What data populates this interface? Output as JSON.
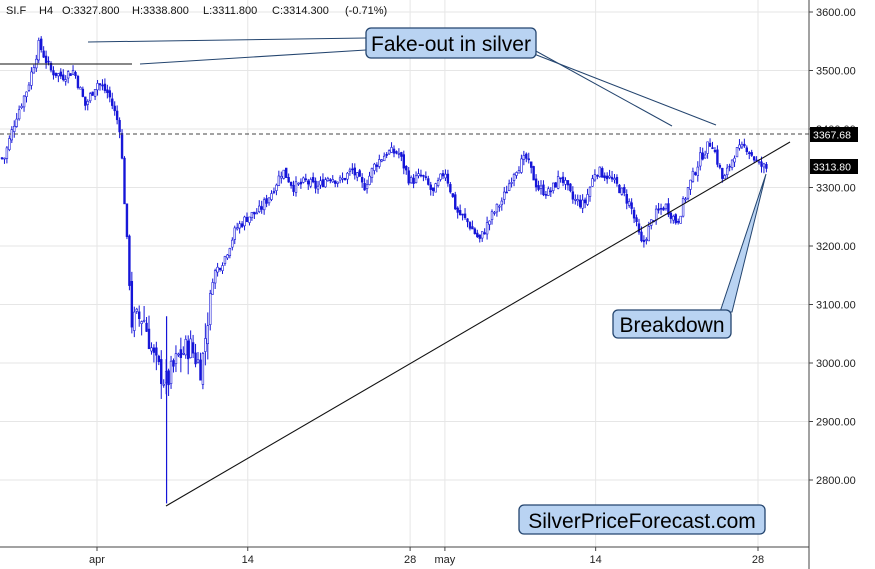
{
  "header": {
    "symbol": "SI.F",
    "timeframe": "H4",
    "open": "O:3327.800",
    "high": "H:3338.800",
    "low": "L:3311.800",
    "close": "C:3314.300",
    "change": "(-0.71%)"
  },
  "annotations": {
    "fakeout": "Fake-out in silver",
    "breakdown": "Breakdown",
    "watermark": "SilverPriceForecast.com"
  },
  "colors": {
    "candle": "#1515d8",
    "callout_fill": "#b9d3f2",
    "callout_border": "#24456f",
    "grid": "#e6e6e6",
    "price_tag": "#000000"
  },
  "chart_data": {
    "type": "candlestick",
    "series": [
      {
        "name": "SI.F H4"
      }
    ],
    "y_axis": {
      "side": "right",
      "ylim": [
        2720,
        3640
      ],
      "ticks": [
        2800,
        2900,
        3000,
        3100,
        3200,
        3300,
        3400,
        3500,
        3600
      ],
      "tick_labels": [
        "2800.00",
        "2900.00",
        "3000.00",
        "3100.00",
        "3200.00",
        "3300.00",
        "3400.00",
        "3500.00",
        "3600.00"
      ]
    },
    "x_axis": {
      "range": [
        "2025-03-24",
        "2025-06-02"
      ],
      "ticks": [
        {
          "date": "2025-04-01",
          "label": "apr"
        },
        {
          "date": "2025-04-14",
          "label": "14"
        },
        {
          "date": "2025-04-28",
          "label": "28"
        },
        {
          "date": "2025-05-01",
          "label": "may"
        },
        {
          "date": "2025-05-14",
          "label": "14"
        },
        {
          "date": "2025-05-28",
          "label": "28"
        }
      ]
    },
    "price_levels": [
      {
        "value": 3367.68,
        "label": "3367.68",
        "style": "dashed"
      },
      {
        "value": 3313.8,
        "label": "3313.80",
        "style": "tag"
      }
    ],
    "path": [
      [
        "2025-03-24",
        3350
      ],
      [
        "2025-03-25",
        3420
      ],
      [
        "2025-03-26",
        3470
      ],
      [
        "2025-03-27",
        3545
      ],
      [
        "2025-03-28",
        3500
      ],
      [
        "2025-03-29",
        3490
      ],
      [
        "2025-03-30",
        3500
      ],
      [
        "2025-03-31",
        3440
      ],
      [
        "2025-04-01",
        3480
      ],
      [
        "2025-04-02",
        3460
      ],
      [
        "2025-04-03",
        3400
      ],
      [
        "2025-04-04",
        3070
      ],
      [
        "2025-04-05",
        3080
      ],
      [
        "2025-04-06",
        3000
      ],
      [
        "2025-04-07",
        2965
      ],
      [
        "2025-04-08",
        3010
      ],
      [
        "2025-04-09",
        3030
      ],
      [
        "2025-04-10",
        2990
      ],
      [
        "2025-04-11",
        3150
      ],
      [
        "2025-04-12",
        3180
      ],
      [
        "2025-04-13",
        3230
      ],
      [
        "2025-04-14",
        3250
      ],
      [
        "2025-04-15",
        3260
      ],
      [
        "2025-04-16",
        3290
      ],
      [
        "2025-04-17",
        3330
      ],
      [
        "2025-04-18",
        3300
      ],
      [
        "2025-04-19",
        3310
      ],
      [
        "2025-04-20",
        3300
      ],
      [
        "2025-04-21",
        3320
      ],
      [
        "2025-04-22",
        3310
      ],
      [
        "2025-04-23",
        3330
      ],
      [
        "2025-04-24",
        3300
      ],
      [
        "2025-04-25",
        3340
      ],
      [
        "2025-04-26",
        3360
      ],
      [
        "2025-04-27",
        3360
      ],
      [
        "2025-04-28",
        3310
      ],
      [
        "2025-04-29",
        3320
      ],
      [
        "2025-04-30",
        3290
      ],
      [
        "2025-05-01",
        3330
      ],
      [
        "2025-05-02",
        3260
      ],
      [
        "2025-05-03",
        3240
      ],
      [
        "2025-05-04",
        3210
      ],
      [
        "2025-05-05",
        3250
      ],
      [
        "2025-05-06",
        3280
      ],
      [
        "2025-05-07",
        3330
      ],
      [
        "2025-05-08",
        3350
      ],
      [
        "2025-05-09",
        3300
      ],
      [
        "2025-05-10",
        3290
      ],
      [
        "2025-05-11",
        3320
      ],
      [
        "2025-05-12",
        3280
      ],
      [
        "2025-05-13",
        3270
      ],
      [
        "2025-05-14",
        3330
      ],
      [
        "2025-05-15",
        3320
      ],
      [
        "2025-05-16",
        3300
      ],
      [
        "2025-05-17",
        3270
      ],
      [
        "2025-05-18",
        3200
      ],
      [
        "2025-05-19",
        3250
      ],
      [
        "2025-05-20",
        3270
      ],
      [
        "2025-05-21",
        3240
      ],
      [
        "2025-05-22",
        3300
      ],
      [
        "2025-05-23",
        3350
      ],
      [
        "2025-05-24",
        3380
      ],
      [
        "2025-05-25",
        3310
      ],
      [
        "2025-05-26",
        3360
      ],
      [
        "2025-05-27",
        3370
      ],
      [
        "2025-05-28",
        3340
      ],
      [
        "2025-05-29",
        3330
      ],
      [
        "2025-05-30",
        3314
      ]
    ]
  }
}
